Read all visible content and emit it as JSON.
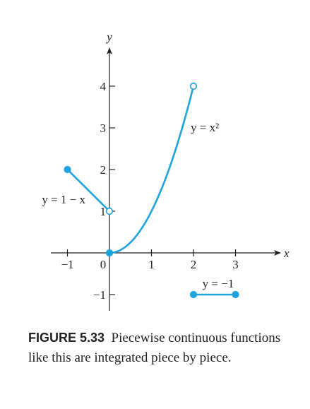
{
  "chart_data": {
    "type": "line",
    "xlabel": "x",
    "ylabel": "y",
    "xlim": [
      -1.2,
      4.0
    ],
    "ylim": [
      -1.2,
      4.5
    ],
    "x_ticks": [
      {
        "value": -1,
        "label": "−1"
      },
      {
        "value": 0,
        "label": "0"
      },
      {
        "value": 1,
        "label": "1"
      },
      {
        "value": 2,
        "label": "2"
      },
      {
        "value": 3,
        "label": "3"
      }
    ],
    "y_ticks": [
      {
        "value": -1,
        "label": "−1"
      },
      {
        "value": 1,
        "label": "1"
      },
      {
        "value": 2,
        "label": "2"
      },
      {
        "value": 3,
        "label": "3"
      },
      {
        "value": 4,
        "label": "4"
      }
    ],
    "color": "#1fa3dc",
    "series": [
      {
        "name": "y = 1 − x",
        "function": "1 - x",
        "domain": [
          -1,
          0
        ],
        "endpoints": [
          {
            "x": -1,
            "y": 2,
            "filled": true
          },
          {
            "x": 0,
            "y": 1,
            "filled": false
          }
        ]
      },
      {
        "name": "y = x²",
        "function": "x^2",
        "domain": [
          0,
          2
        ],
        "endpoints": [
          {
            "x": 0,
            "y": 0,
            "filled": true
          },
          {
            "x": 2,
            "y": 4,
            "filled": false
          }
        ]
      },
      {
        "name": "y = −1",
        "function": "-1",
        "domain": [
          2,
          3
        ],
        "endpoints": [
          {
            "x": 2,
            "y": -1,
            "filled": true
          },
          {
            "x": 3,
            "y": -1,
            "filled": true
          }
        ]
      }
    ]
  },
  "caption": {
    "label": "FIGURE 5.33",
    "text": "Piecewise continuous functions like this are integrated piece by piece."
  }
}
